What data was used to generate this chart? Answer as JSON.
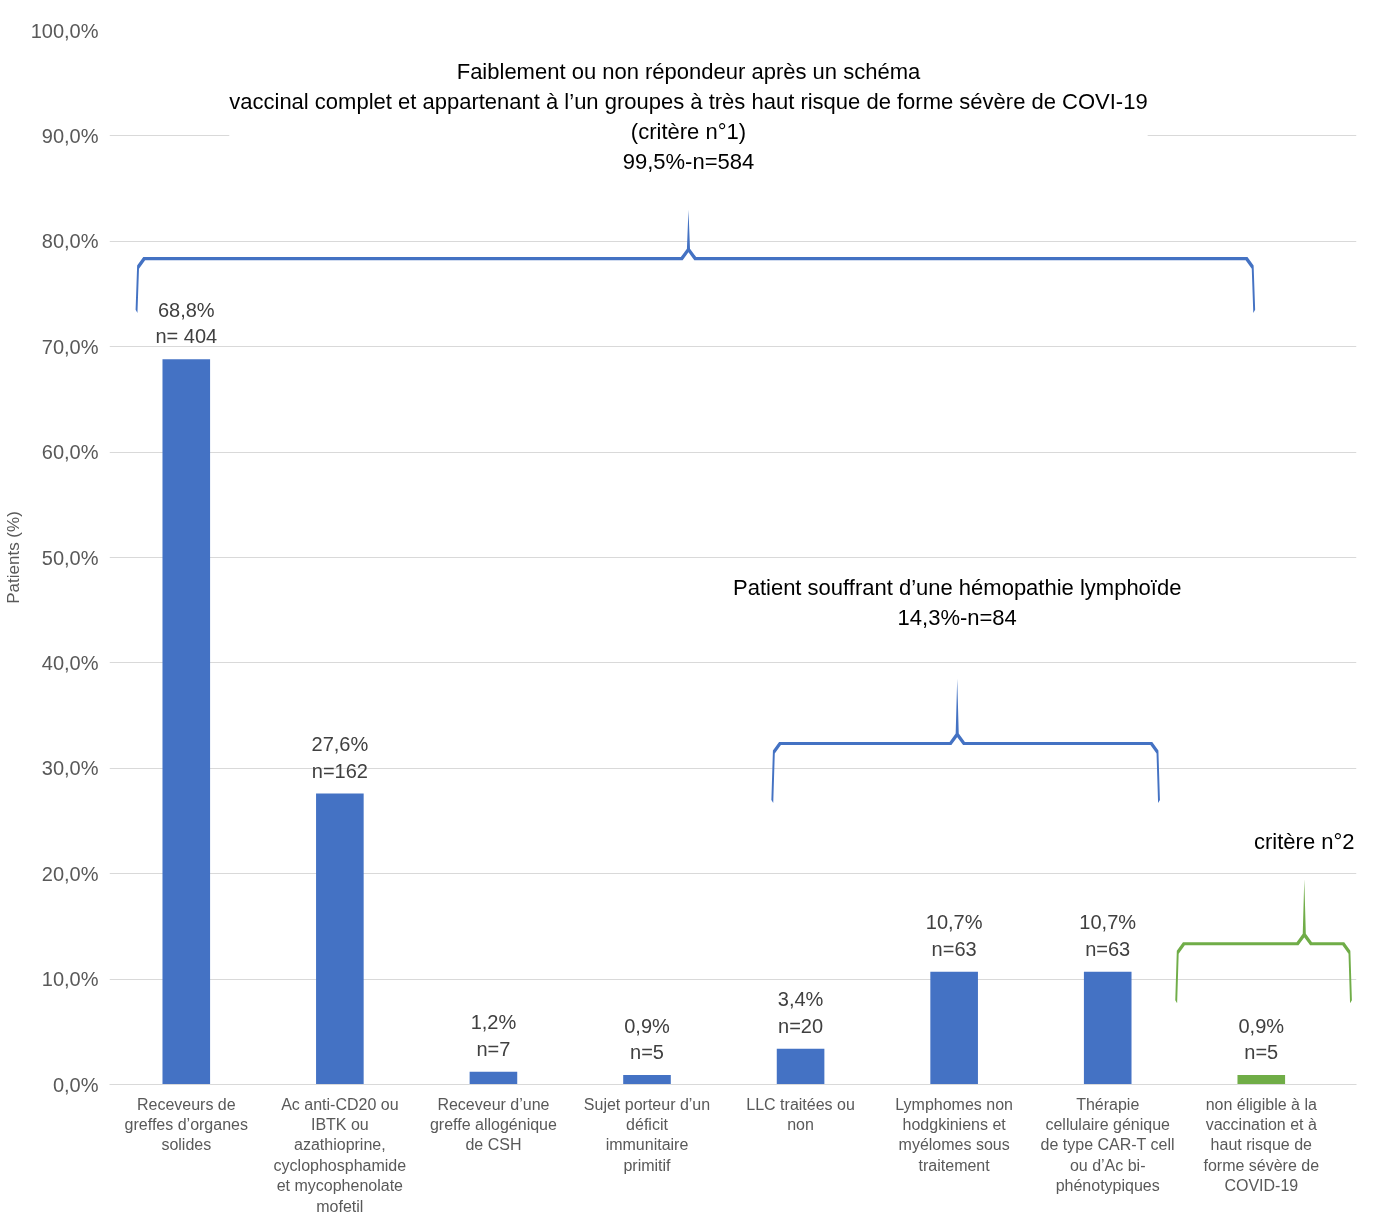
{
  "chart_data": {
    "type": "bar",
    "ylabel": "Patients (%)",
    "categories": [
      "Receveurs de greffes d’organes solides",
      "Ac anti-CD20 ou IBTK ou azathioprine, cyclophosphamide et mycophenolate mofetil",
      "Receveur d’une greffe allogénique de CSH",
      "Sujet porteur d’un déficit immunitaire primitif",
      "LLC traitées ou non",
      "Lymphomes non hodgkiniens et myélomes sous traitement",
      "Thérapie cellulaire génique de type CAR-T cell ou d’Ac bi-phénotypiques",
      "non éligible à la vaccination et à haut risque de forme sévère de COVID-19"
    ],
    "values": [
      68.8,
      27.6,
      1.2,
      0.9,
      3.4,
      10.7,
      10.7,
      0.9
    ],
    "colors": [
      "#4472c4",
      "#4472c4",
      "#4472c4",
      "#4472c4",
      "#4472c4",
      "#4472c4",
      "#4472c4",
      "#70ad47"
    ],
    "value_labels": [
      "68,8%\nn= 404",
      "27,6%\nn=162",
      "1,2%\nn=7",
      "0,9%\nn=5",
      "3,4%\nn=20",
      "10,7%\nn=63",
      "10,7%\nn=63",
      "0,9%\nn=5"
    ],
    "ylim": [
      0,
      100
    ],
    "yticks": [
      {
        "value": 0,
        "label": "0,0%"
      },
      {
        "value": 10,
        "label": "10,0%"
      },
      {
        "value": 20,
        "label": "20,0%"
      },
      {
        "value": 30,
        "label": "30,0%"
      },
      {
        "value": 40,
        "label": "40,0%"
      },
      {
        "value": 50,
        "label": "50,0%"
      },
      {
        "value": 60,
        "label": "60,0%"
      },
      {
        "value": 70,
        "label": "70,0%"
      },
      {
        "value": 80,
        "label": "80,0%"
      },
      {
        "value": 90,
        "label": "90,0%"
      },
      {
        "value": 100,
        "label": "100,0%"
      }
    ],
    "grid": "y",
    "annotations": [
      "Faiblement ou non répondeur après un schéma\nvaccinal complet et appartenant à l’un groupes à très haut risque de forme sévère de COVI-19\n(critère n°1)\n99,5%-n=584",
      "Patient souffrant d’une hémopathie lymphoïde\n14,3%-n=84",
      "critère n°2"
    ]
  }
}
